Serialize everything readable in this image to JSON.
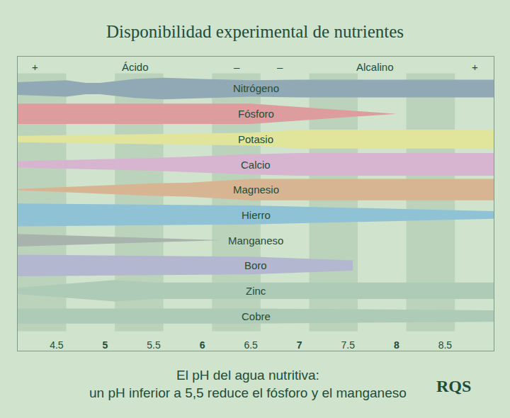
{
  "chart_data": {
    "type": "band",
    "title": "Disponibilidad experimental de nutrientes",
    "subtitle": [
      "El pH del agua nutritiva:",
      "un pH inferior a 5,5 reduce el fósforo y el manganeso"
    ],
    "source": "RQS",
    "xlim": [
      4.1,
      9.0
    ],
    "xticks": [
      4.5,
      5,
      5.5,
      6,
      6.5,
      7,
      7.5,
      8,
      8.5
    ],
    "tick_labels": "x",
    "grid": false,
    "annotations": [
      {
        "text": "+",
        "x": 4.28
      },
      {
        "text": "Ácido",
        "x": 5.31
      },
      {
        "text": "–",
        "x": 6.36
      },
      {
        "text": "–",
        "x": 6.8
      },
      {
        "text": "Alcalino",
        "x": 7.78
      },
      {
        "text": "+",
        "x": 8.81
      }
    ],
    "series": [
      {
        "name": "Nitrógeno",
        "color": "#91a8b5",
        "x": [
          4.1,
          4.6,
          4.8,
          4.95,
          5.3,
          5.6,
          6.0,
          6.5,
          7.0,
          9.0
        ],
        "values": [
          0.5,
          0.65,
          0.45,
          0.45,
          0.75,
          0.85,
          0.75,
          0.65,
          0.7,
          0.7
        ]
      },
      {
        "name": "Fósforo",
        "color": "#dd9d9f",
        "x": [
          4.1,
          6.5,
          8.0
        ],
        "values": [
          0.8,
          0.8,
          0.0
        ]
      },
      {
        "name": "Potasio",
        "color": "#e0e59b",
        "x": [
          4.1,
          5.5,
          6.0,
          6.5,
          7.0,
          9.0
        ],
        "values": [
          0.25,
          0.4,
          0.45,
          0.5,
          0.75,
          0.75
        ]
      },
      {
        "name": "Calcio",
        "color": "#d7b4cf",
        "x": [
          4.1,
          5.5,
          6.5,
          7.0,
          9.0
        ],
        "values": [
          0.25,
          0.5,
          0.8,
          0.9,
          0.9
        ]
      },
      {
        "name": "Magnesio",
        "color": "#d8b592",
        "x": [
          4.1,
          5.5,
          5.85,
          6.5,
          9.0
        ],
        "values": [
          0.05,
          0.5,
          0.55,
          0.85,
          0.85
        ]
      },
      {
        "name": "Hierro",
        "color": "#8fc2d4",
        "x": [
          4.1,
          6.5,
          9.0
        ],
        "values": [
          0.9,
          0.75,
          0.3
        ]
      },
      {
        "name": "Manganeso",
        "color": "#a9b3ad",
        "x": [
          4.1,
          6.2
        ],
        "values": [
          0.5,
          0.0
        ]
      },
      {
        "name": "Boro",
        "color": "#b3b7d0",
        "x": [
          4.1,
          6.5,
          7.55
        ],
        "values": [
          0.85,
          0.7,
          0.4
        ]
      },
      {
        "name": "Zinc",
        "color": "#aecbb8",
        "x": [
          4.1,
          5.1,
          5.5,
          6.5,
          9.0
        ],
        "values": [
          0.25,
          0.85,
          0.65,
          0.65,
          0.65
        ]
      },
      {
        "name": "Cobre",
        "color": "#aecbb8",
        "x": [
          4.1,
          6.5,
          9.0
        ],
        "values": [
          0.6,
          0.6,
          0.45
        ]
      }
    ]
  }
}
